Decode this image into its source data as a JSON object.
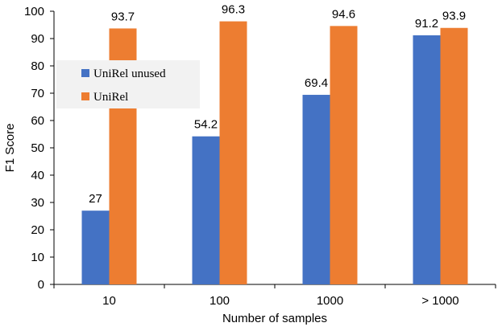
{
  "chart_data": {
    "type": "bar",
    "categories": [
      "10",
      "100",
      "1000",
      "> 1000"
    ],
    "series": [
      {
        "name": "UniRel unused",
        "values": [
          27,
          54.2,
          69.4,
          91.2
        ],
        "color": "#4472C4"
      },
      {
        "name": "UniRel",
        "values": [
          93.7,
          96.3,
          94.6,
          93.9
        ],
        "color": "#ED7D31"
      }
    ],
    "data_labels": [
      [
        "27",
        "54.2",
        "69.4",
        "91.2"
      ],
      [
        "93.7",
        "96.3",
        "94.6",
        "93.9"
      ]
    ],
    "xlabel": "Number of samples",
    "ylabel": "F1 Score",
    "ylim": [
      0,
      100
    ],
    "yticks": [
      0,
      10,
      20,
      30,
      40,
      50,
      60,
      70,
      80,
      90,
      100
    ],
    "grid": false,
    "legend_position": "upper-left"
  }
}
